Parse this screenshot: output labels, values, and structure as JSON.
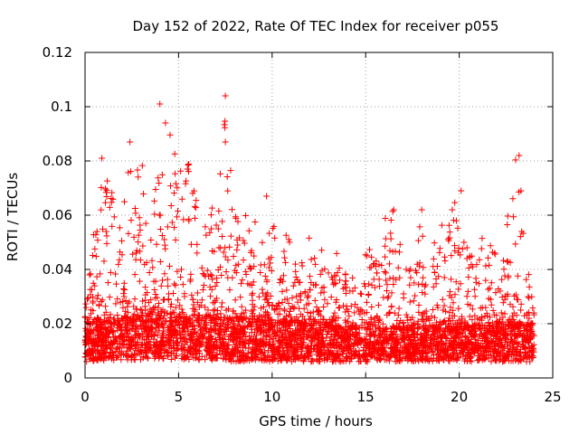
{
  "chart_data": {
    "type": "scatter",
    "title": "Day 152 of 2022, Rate Of TEC Index for receiver p055",
    "xlabel": "GPS time / hours",
    "ylabel": "ROTI / TECUs",
    "xlim": [
      0,
      25
    ],
    "ylim": [
      0,
      0.12
    ],
    "xticks": [
      0,
      5,
      10,
      15,
      20,
      25
    ],
    "xtick_labels": [
      "0",
      "5",
      "10",
      "15",
      "20",
      "25"
    ],
    "yticks": [
      0,
      0.02,
      0.04,
      0.06,
      0.08,
      0.1,
      0.12
    ],
    "ytick_labels": [
      "0",
      "0.02",
      "0.04",
      "0.06",
      "0.08",
      "0.1",
      "0.12"
    ],
    "grid": true,
    "marker": "+",
    "color": "#ff0000",
    "x_range_of_data": [
      0,
      24
    ],
    "baseline_band": {
      "x": [
        0,
        4,
        8,
        12,
        16,
        20,
        24
      ],
      "low": [
        0.006,
        0.007,
        0.006,
        0.006,
        0.006,
        0.006,
        0.006
      ],
      "high": [
        0.02,
        0.024,
        0.022,
        0.02,
        0.018,
        0.019,
        0.02
      ]
    },
    "envelope_max": {
      "x": [
        0,
        0.5,
        1,
        1.5,
        2,
        2.5,
        3,
        3.5,
        4,
        4.5,
        5,
        5.5,
        6,
        6.5,
        7,
        7.5,
        8,
        8.5,
        9,
        9.5,
        10,
        10.5,
        11,
        11.5,
        12,
        12.5,
        13,
        13.5,
        14,
        14.5,
        15,
        15.5,
        16,
        16.5,
        17,
        17.5,
        18,
        18.5,
        19,
        19.5,
        20,
        20.5,
        21,
        21.5,
        22,
        22.5,
        23,
        23.5,
        24
      ],
      "values": [
        0.035,
        0.055,
        0.081,
        0.068,
        0.06,
        0.087,
        0.083,
        0.072,
        0.101,
        0.094,
        0.082,
        0.08,
        0.068,
        0.075,
        0.06,
        0.104,
        0.06,
        0.062,
        0.058,
        0.067,
        0.055,
        0.06,
        0.05,
        0.045,
        0.055,
        0.05,
        0.042,
        0.048,
        0.04,
        0.035,
        0.052,
        0.042,
        0.06,
        0.062,
        0.045,
        0.04,
        0.062,
        0.05,
        0.055,
        0.065,
        0.069,
        0.045,
        0.05,
        0.057,
        0.05,
        0.055,
        0.082,
        0.05,
        0.025
      ]
    },
    "notable_points": [
      {
        "x": 4.0,
        "y": 0.101
      },
      {
        "x": 4.3,
        "y": 0.094
      },
      {
        "x": 7.5,
        "y": 0.104
      },
      {
        "x": 7.5,
        "y": 0.087
      },
      {
        "x": 2.4,
        "y": 0.087
      },
      {
        "x": 0.9,
        "y": 0.081
      },
      {
        "x": 23.2,
        "y": 0.082
      },
      {
        "x": 23.3,
        "y": 0.069
      },
      {
        "x": 20.1,
        "y": 0.069
      },
      {
        "x": 9.7,
        "y": 0.067
      },
      {
        "x": 16.5,
        "y": 0.062
      },
      {
        "x": 18.0,
        "y": 0.062
      }
    ]
  }
}
